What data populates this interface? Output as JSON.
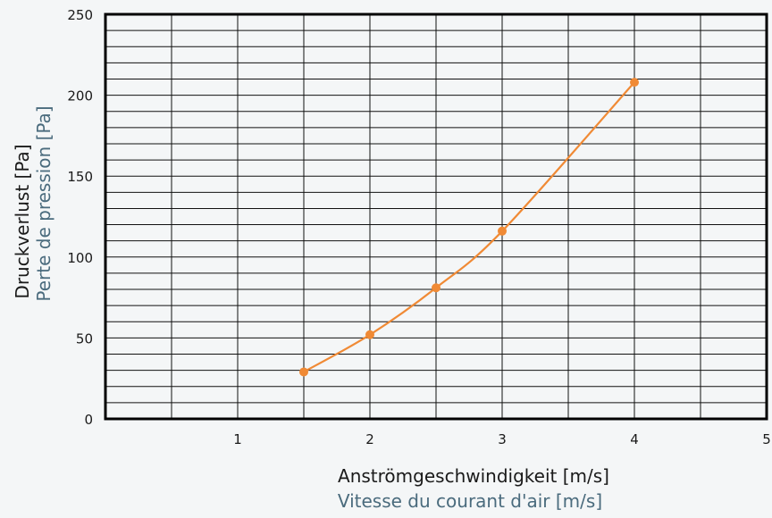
{
  "chart_data": {
    "type": "line",
    "ylabel_primary": "Druckverlust [Pa]",
    "ylabel_secondary": "Perte de pression [Pa]",
    "xlabel_primary": "Anströmgeschwindigkeit [m/s]",
    "xlabel_secondary": "Vitesse du courant d'air [m/s]",
    "xlim": [
      0,
      5
    ],
    "ylim": [
      0,
      250
    ],
    "x_ticks": [
      1,
      2,
      3,
      4,
      5
    ],
    "y_ticks": [
      0,
      50,
      100,
      150,
      200,
      250
    ],
    "x_tick_labels": [
      "1",
      "2",
      "3",
      "4",
      "5"
    ],
    "y_tick_labels": [
      "0",
      "50",
      "100",
      "150",
      "200",
      "250"
    ],
    "grid": true,
    "grid_x_step": 0.5,
    "grid_y_step": 10,
    "series": [
      {
        "color": "#f08a35",
        "x": [
          1.5,
          2,
          2.5,
          3,
          4
        ],
        "y": [
          29,
          52,
          81,
          116,
          208
        ]
      }
    ]
  }
}
